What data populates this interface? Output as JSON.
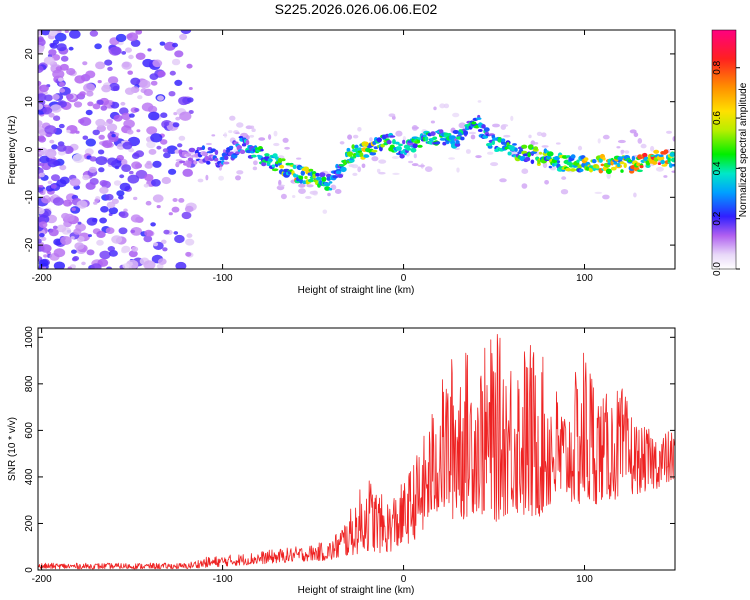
{
  "title": "S225.2026.026.06.06.E02",
  "colors": {
    "snr_line": "#ee2222",
    "axis": "#000000"
  },
  "chart_data": [
    {
      "type": "heatmap",
      "name": "spectrogram",
      "xlabel": "Height of straight line (km)",
      "ylabel": "Frequency (Hz)",
      "xlim": [
        -202,
        150
      ],
      "ylim": [
        -25,
        25
      ],
      "xticks": [
        -200,
        -100,
        0,
        100
      ],
      "yticks": [
        -20,
        -10,
        0,
        10,
        20
      ],
      "colorbar": {
        "label": "Normalized spectral amplitude",
        "range": [
          0,
          0.95
        ],
        "ticks": [
          0.0,
          0.2,
          0.4,
          0.6,
          0.8
        ],
        "tick_labels": [
          "0.0",
          "0.2",
          "0.4",
          "0.6",
          "0.8"
        ],
        "colormap": "rainbow-white-violet-red"
      },
      "ridge": {
        "description": "dominant frequency trace",
        "x": [
          -120,
          -110,
          -100,
          -90,
          -80,
          -70,
          -60,
          -50,
          -40,
          -30,
          -20,
          -10,
          0,
          10,
          20,
          30,
          40,
          50,
          60,
          70,
          80,
          90,
          100,
          110,
          120,
          130,
          140,
          150
        ],
        "freq": [
          -2,
          -1,
          -2,
          1,
          -1,
          -3,
          -5,
          -6,
          -7,
          -1,
          0,
          2,
          0,
          2,
          3,
          2,
          6,
          1,
          0,
          -1,
          -2,
          -3,
          -3,
          -3,
          -3,
          -3,
          -2,
          -2
        ],
        "amplitude": [
          0.15,
          0.25,
          0.3,
          0.35,
          0.45,
          0.55,
          0.75,
          0.6,
          0.4,
          0.5,
          0.7,
          0.55,
          0.4,
          0.5,
          0.45,
          0.4,
          0.45,
          0.4,
          0.5,
          0.55,
          0.6,
          0.55,
          0.7,
          0.75,
          0.7,
          0.85,
          0.9,
          0.75
        ]
      }
    },
    {
      "type": "line",
      "name": "snr",
      "xlabel": "Height of straight line (km)",
      "ylabel": "SNR (10 * v/v)",
      "xlim": [
        -202,
        150
      ],
      "ylim": [
        0,
        1040
      ],
      "xticks": [
        -200,
        -100,
        0,
        100
      ],
      "yticks": [
        0,
        200,
        400,
        600,
        800,
        1000
      ],
      "envelope": {
        "x": [
          -202,
          -120,
          -110,
          -90,
          -70,
          -50,
          -40,
          -30,
          -20,
          -10,
          0,
          10,
          20,
          30,
          40,
          50,
          60,
          70,
          80,
          90,
          100,
          110,
          120,
          130,
          140,
          150
        ],
        "upper": [
          30,
          30,
          55,
          70,
          90,
          110,
          130,
          250,
          420,
          300,
          380,
          550,
          800,
          1000,
          900,
          1030,
          950,
          1000,
          880,
          700,
          1000,
          750,
          800,
          620,
          600,
          600
        ],
        "lower": [
          5,
          5,
          10,
          20,
          30,
          40,
          40,
          60,
          80,
          70,
          100,
          150,
          250,
          200,
          250,
          200,
          250,
          200,
          250,
          300,
          250,
          300,
          300,
          330,
          350,
          380
        ]
      }
    }
  ]
}
